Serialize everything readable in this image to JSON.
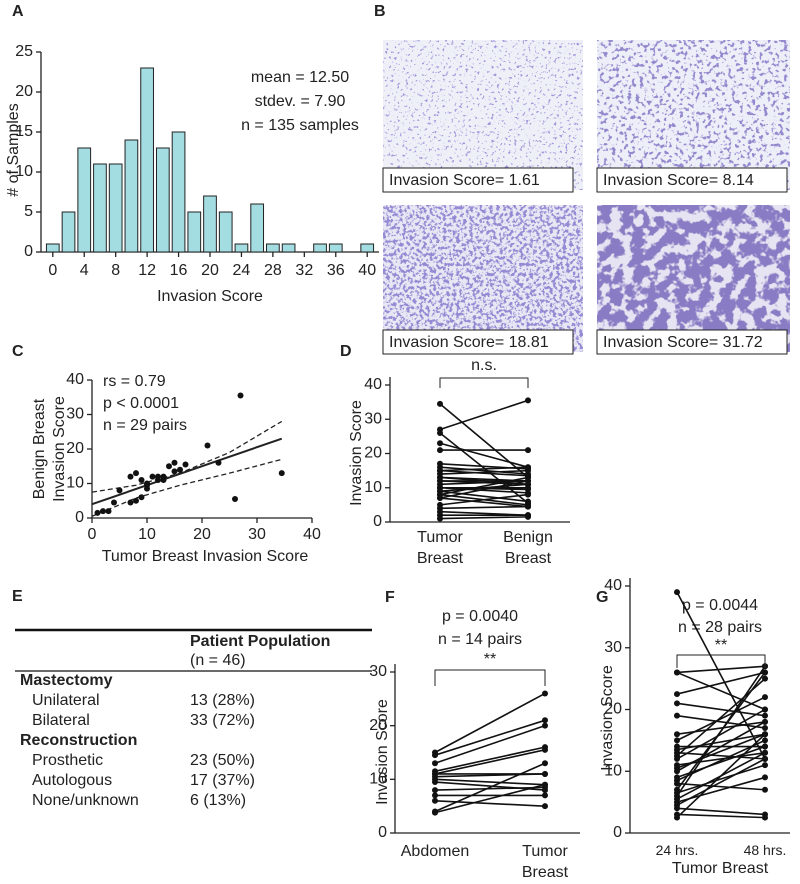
{
  "panel_labels": [
    "A",
    "B",
    "C",
    "D",
    "E",
    "F",
    "G"
  ],
  "chart_data": [
    {
      "type": "histogram",
      "x_label": "Invasion Score",
      "y_label": "# of Samples",
      "color": "#a3dde2",
      "bins": [
        -1,
        1,
        3,
        5,
        7,
        9,
        11,
        13,
        15,
        17,
        19,
        21,
        23,
        25,
        27,
        29,
        31,
        33,
        35,
        37,
        39,
        41
      ],
      "values": [
        1,
        5,
        13,
        11,
        11,
        14,
        23,
        13,
        15,
        5,
        7,
        5,
        1,
        6,
        1,
        1,
        0,
        1,
        1,
        0,
        1
      ],
      "xlim": [
        -1.5,
        41.5
      ],
      "xticks": [
        0,
        4,
        8,
        12,
        16,
        20,
        24,
        28,
        32,
        36,
        40
      ],
      "ylim": [
        0,
        25
      ],
      "yticks": [
        0,
        5,
        10,
        15,
        20,
        25
      ],
      "annotations": [
        "mean = 12.50",
        "stdev. = 7.90",
        "n = 135 samples"
      ]
    },
    {
      "type": "scatter",
      "x_label": "Tumor Breast Invasion Score",
      "y_label": [
        "Benign Breast",
        "Invasion Score"
      ],
      "x": [
        34.5,
        27,
        26,
        21,
        23,
        17,
        15,
        13,
        12,
        11,
        10,
        9,
        8,
        7,
        8,
        9,
        10,
        5,
        4,
        3,
        2,
        1,
        14,
        12,
        15,
        10,
        7,
        13,
        16
      ],
      "y": [
        13,
        35.5,
        5.5,
        21,
        16,
        15.5,
        16,
        12,
        11,
        12,
        10,
        11,
        13,
        4.5,
        5,
        6,
        9.5,
        8,
        4.5,
        2,
        2,
        1.5,
        15,
        12,
        13.5,
        8.5,
        12,
        11,
        14
      ],
      "fit_line": {
        "x": [
          0,
          34.5
        ],
        "y": [
          4,
          23
        ]
      },
      "ci_upper": {
        "x": [
          0,
          8,
          16,
          25,
          34.5
        ],
        "y": [
          7.5,
          9.5,
          13,
          19,
          28
        ]
      },
      "ci_lower": {
        "x": [
          0,
          8,
          16,
          25,
          34.5
        ],
        "y": [
          0.5,
          5.8,
          9.5,
          13,
          17
        ]
      },
      "xlim": [
        0,
        40
      ],
      "xticks": [
        0,
        10,
        20,
        30,
        40
      ],
      "ylim": [
        0,
        40
      ],
      "yticks": [
        0,
        10,
        20,
        30,
        40
      ],
      "annotations": [
        "rs = 0.79",
        "p < 0.0001",
        "n = 29 pairs"
      ]
    },
    {
      "type": "paired",
      "y_label": "Invasion Score",
      "categories": [
        "Tumor Breast",
        "Benign Breast"
      ],
      "significance": "n.s.",
      "pairs": [
        [
          34.5,
          13
        ],
        [
          27,
          35.5
        ],
        [
          26,
          5.5
        ],
        [
          21,
          21
        ],
        [
          23,
          16
        ],
        [
          17,
          15.5
        ],
        [
          15,
          16
        ],
        [
          13,
          12
        ],
        [
          12,
          11
        ],
        [
          11,
          12
        ],
        [
          10,
          10
        ],
        [
          9,
          11
        ],
        [
          8,
          13
        ],
        [
          7,
          4.5
        ],
        [
          8,
          5
        ],
        [
          9,
          6
        ],
        [
          10,
          9.5
        ],
        [
          5,
          8
        ],
        [
          4,
          4.5
        ],
        [
          3,
          2
        ],
        [
          2,
          2
        ],
        [
          1,
          1.5
        ],
        [
          14,
          15
        ],
        [
          12,
          12
        ],
        [
          15,
          13.5
        ],
        [
          10,
          8.5
        ],
        [
          7,
          12
        ],
        [
          13,
          11
        ],
        [
          16,
          14
        ]
      ],
      "ylim": [
        0,
        40
      ],
      "yticks": [
        0,
        10,
        20,
        30,
        40
      ]
    },
    {
      "type": "paired",
      "y_label": "Invasion Score",
      "categories": [
        "Abdomen",
        "Tumor Breast"
      ],
      "significance": "**",
      "annotations": [
        "p = 0.0040",
        "n = 14 pairs"
      ],
      "pairs": [
        [
          15,
          26
        ],
        [
          14.5,
          21
        ],
        [
          11.5,
          16
        ],
        [
          11,
          15.5
        ],
        [
          11,
          11
        ],
        [
          10.5,
          11
        ],
        [
          10,
          9
        ],
        [
          9.5,
          8
        ],
        [
          8,
          8.5
        ],
        [
          7,
          7
        ],
        [
          6,
          5
        ],
        [
          4,
          13
        ],
        [
          3.8,
          9
        ],
        [
          13,
          20
        ]
      ],
      "ylim": [
        0,
        30
      ],
      "yticks": [
        0,
        10,
        20,
        30
      ]
    },
    {
      "type": "paired",
      "x_label": "Tumor Breast",
      "y_label": "Invasion Score",
      "categories": [
        "24 hrs.",
        "48 hrs."
      ],
      "significance": "**",
      "annotations": [
        "p = 0.0044",
        "n = 28 pairs"
      ],
      "pairs": [
        [
          39,
          12
        ],
        [
          26,
          27
        ],
        [
          26,
          20
        ],
        [
          22.5,
          26
        ],
        [
          21,
          19
        ],
        [
          19,
          17
        ],
        [
          16,
          18
        ],
        [
          15,
          22
        ],
        [
          14,
          14
        ],
        [
          13.5,
          16
        ],
        [
          13,
          12
        ],
        [
          12.5,
          25
        ],
        [
          12,
          20
        ],
        [
          11,
          13
        ],
        [
          10.5,
          16
        ],
        [
          10,
          18
        ],
        [
          9,
          14
        ],
        [
          8.5,
          15
        ],
        [
          8,
          7
        ],
        [
          7,
          26
        ],
        [
          6.5,
          11
        ],
        [
          6,
          27
        ],
        [
          5.5,
          13
        ],
        [
          5,
          9
        ],
        [
          4.5,
          12
        ],
        [
          4,
          3
        ],
        [
          3,
          2.5
        ],
        [
          2.5,
          16
        ]
      ],
      "ylim": [
        0,
        40
      ],
      "yticks": [
        0,
        10,
        20,
        30,
        40
      ]
    }
  ],
  "images": [
    {
      "caption": "Invasion Score= 1.61"
    },
    {
      "caption": "Invasion Score= 8.14"
    },
    {
      "caption": "Invasion Score= 18.81"
    },
    {
      "caption": "Invasion Score= 31.72"
    }
  ],
  "table": {
    "header": "Patient Population",
    "subheader": "(n = 46)",
    "sections": [
      {
        "title": "Mastectomy",
        "rows": [
          [
            "Unilateral",
            "13 (28%)"
          ],
          [
            "Bilateral",
            "33 (72%)"
          ]
        ]
      },
      {
        "title": "Reconstruction",
        "rows": [
          [
            "Prosthetic",
            "23 (50%)"
          ],
          [
            "Autologous",
            "17 (37%)"
          ],
          [
            "None/unknown",
            "6 (13%)"
          ]
        ]
      }
    ]
  }
}
